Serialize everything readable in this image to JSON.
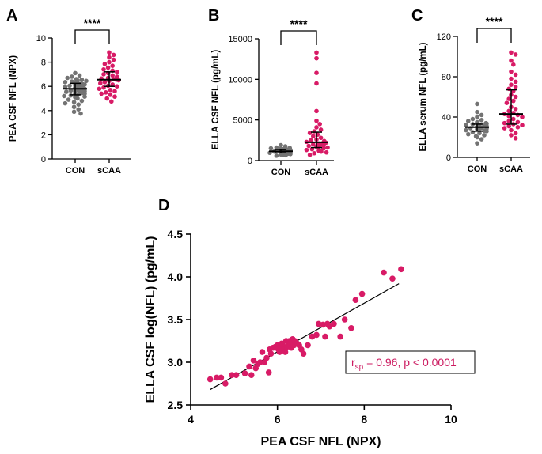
{
  "colors": {
    "con": "#737373",
    "scaa": "#d81b66",
    "stat_text": "#cc1a60",
    "axis": "#000000"
  },
  "chart_data": [
    {
      "panel": "A",
      "type": "scatter",
      "title": "",
      "xlabel": "",
      "ylabel": "PEA CSF NFL (NPX)",
      "categories": [
        "CON",
        "sCAA"
      ],
      "ylim": [
        0,
        10
      ],
      "yticks": [
        0,
        2,
        4,
        6,
        8,
        10
      ],
      "ytick_labels": [
        "0",
        "2",
        "4",
        "6",
        "8",
        "10"
      ],
      "significance": "****",
      "summary": [
        {
          "median": 5.8,
          "q1": 5.3,
          "q3": 6.25
        },
        {
          "median": 6.55,
          "q1": 6.0,
          "q3": 7.2
        }
      ],
      "series": [
        {
          "name": "CON",
          "values": [
            7.1,
            6.9,
            6.8,
            6.7,
            6.6,
            6.55,
            6.5,
            6.45,
            6.4,
            6.35,
            6.3,
            6.25,
            6.2,
            6.2,
            6.15,
            6.1,
            6.05,
            6.0,
            6.0,
            5.95,
            5.9,
            5.9,
            5.85,
            5.8,
            5.8,
            5.75,
            5.7,
            5.7,
            5.65,
            5.6,
            5.6,
            5.55,
            5.5,
            5.45,
            5.4,
            5.35,
            5.3,
            5.25,
            5.2,
            5.15,
            5.1,
            5.0,
            4.9,
            4.8,
            4.7,
            4.6,
            4.5,
            4.3,
            4.1,
            3.9,
            3.75
          ]
        },
        {
          "name": "sCAA",
          "values": [
            8.8,
            8.6,
            8.4,
            8.2,
            8.0,
            7.85,
            7.7,
            7.55,
            7.4,
            7.3,
            7.2,
            7.1,
            7.0,
            6.9,
            6.8,
            6.7,
            6.65,
            6.6,
            6.55,
            6.5,
            6.45,
            6.35,
            6.25,
            6.15,
            6.05,
            6.0,
            5.9,
            5.8,
            5.7,
            5.6,
            5.5,
            5.4,
            5.3,
            5.15,
            5.0,
            4.75
          ]
        }
      ]
    },
    {
      "panel": "B",
      "type": "scatter",
      "title": "",
      "xlabel": "",
      "ylabel": "ELLA CSF NFL (pg/mL)",
      "categories": [
        "CON",
        "sCAA"
      ],
      "ylim": [
        0,
        15000
      ],
      "yticks": [
        0,
        5000,
        10000,
        15000
      ],
      "ytick_labels": [
        "0",
        "5000",
        "10000",
        "15000"
      ],
      "significance": "****",
      "summary": [
        {
          "median": 1150,
          "q1": 950,
          "q3": 1350
        },
        {
          "median": 2250,
          "q1": 1600,
          "q3": 3500
        }
      ],
      "series": [
        {
          "name": "CON",
          "values": [
            1900,
            1750,
            1600,
            1550,
            1500,
            1450,
            1400,
            1380,
            1350,
            1320,
            1300,
            1280,
            1250,
            1230,
            1200,
            1180,
            1150,
            1130,
            1100,
            1080,
            1050,
            1020,
            1000,
            980,
            950,
            930,
            900,
            880,
            850,
            800,
            750,
            700,
            650,
            600
          ]
        },
        {
          "name": "sCAA",
          "values": [
            13300,
            12600,
            10800,
            9500,
            6100,
            4900,
            4500,
            4100,
            3800,
            3600,
            3400,
            3200,
            3000,
            2800,
            2600,
            2500,
            2400,
            2300,
            2250,
            2200,
            2100,
            2000,
            1950,
            1900,
            1800,
            1700,
            1650,
            1600,
            1500,
            1400,
            1300,
            1200,
            1100,
            1000,
            900,
            700
          ]
        }
      ]
    },
    {
      "panel": "C",
      "type": "scatter",
      "title": "",
      "xlabel": "",
      "ylabel": "ELLA serum NFL (pg/mL)",
      "categories": [
        "CON",
        "sCAA"
      ],
      "ylim": [
        0,
        120
      ],
      "yticks": [
        0,
        40,
        80,
        120
      ],
      "ytick_labels": [
        "0",
        "40",
        "80",
        "120"
      ],
      "significance": "****",
      "summary": [
        {
          "median": 30,
          "q1": 26,
          "q3": 33
        },
        {
          "median": 43,
          "q1": 33,
          "q3": 67
        }
      ],
      "series": [
        {
          "name": "CON",
          "values": [
            53,
            45,
            42,
            40,
            38,
            37,
            36,
            35,
            34,
            33.5,
            33,
            32.5,
            32,
            31.5,
            31,
            30.5,
            30,
            29.5,
            29,
            28.5,
            28,
            27.5,
            27,
            26.5,
            26,
            25,
            24,
            23,
            22,
            21,
            20,
            18,
            14
          ]
        },
        {
          "name": "sCAA",
          "values": [
            104,
            102,
            96,
            92,
            85,
            82,
            78,
            75,
            72,
            70,
            68,
            66,
            62,
            60,
            58,
            56,
            54,
            50,
            48,
            46,
            44,
            43,
            42,
            41,
            40,
            38,
            36,
            35,
            34,
            33,
            32,
            31,
            30,
            29,
            27,
            24,
            22,
            19
          ]
        }
      ]
    },
    {
      "panel": "D",
      "type": "scatter",
      "title": "",
      "xlabel": "PEA CSF NFL (NPX)",
      "ylabel": "ELLA CSF log(NFL) (pg/mL)",
      "xlim": [
        4,
        10
      ],
      "ylim": [
        2.5,
        4.5
      ],
      "xticks": [
        4,
        6,
        8,
        10
      ],
      "xtick_labels": [
        "4",
        "6",
        "8",
        "10"
      ],
      "yticks": [
        2.5,
        3.0,
        3.5,
        4.0,
        4.5
      ],
      "ytick_labels": [
        "2.5",
        "3.0",
        "3.5",
        "4.0",
        "4.5"
      ],
      "fit_line": [
        [
          4.45,
          2.68
        ],
        [
          8.8,
          3.92
        ]
      ],
      "annotation": {
        "r_main": "r",
        "r_sub": "sp",
        "rest": " = 0.96, p < 0.0001"
      },
      "points": [
        [
          4.45,
          2.8
        ],
        [
          4.6,
          2.82
        ],
        [
          4.7,
          2.82
        ],
        [
          4.8,
          2.75
        ],
        [
          4.95,
          2.85
        ],
        [
          5.05,
          2.85
        ],
        [
          5.25,
          2.87
        ],
        [
          5.35,
          2.95
        ],
        [
          5.4,
          2.85
        ],
        [
          5.45,
          3.02
        ],
        [
          5.5,
          2.93
        ],
        [
          5.55,
          2.98
        ],
        [
          5.6,
          3.0
        ],
        [
          5.65,
          3.12
        ],
        [
          5.7,
          3.0
        ],
        [
          5.75,
          3.05
        ],
        [
          5.8,
          2.88
        ],
        [
          5.82,
          3.15
        ],
        [
          5.85,
          3.1
        ],
        [
          5.9,
          3.17
        ],
        [
          5.95,
          3.18
        ],
        [
          6.0,
          3.2
        ],
        [
          6.02,
          3.15
        ],
        [
          6.05,
          3.12
        ],
        [
          6.08,
          3.18
        ],
        [
          6.1,
          3.22
        ],
        [
          6.12,
          3.2
        ],
        [
          6.15,
          3.15
        ],
        [
          6.18,
          3.12
        ],
        [
          6.2,
          3.25
        ],
        [
          6.22,
          3.18
        ],
        [
          6.25,
          3.2
        ],
        [
          6.28,
          3.25
        ],
        [
          6.3,
          3.22
        ],
        [
          6.32,
          3.17
        ],
        [
          6.35,
          3.27
        ],
        [
          6.38,
          3.2
        ],
        [
          6.4,
          3.25
        ],
        [
          6.45,
          3.22
        ],
        [
          6.5,
          3.2
        ],
        [
          6.55,
          3.15
        ],
        [
          6.6,
          3.1
        ],
        [
          6.7,
          3.2
        ],
        [
          6.8,
          3.3
        ],
        [
          6.9,
          3.32
        ],
        [
          6.95,
          3.45
        ],
        [
          7.05,
          3.44
        ],
        [
          7.1,
          3.3
        ],
        [
          7.15,
          3.45
        ],
        [
          7.2,
          3.42
        ],
        [
          7.3,
          3.45
        ],
        [
          7.45,
          3.3
        ],
        [
          7.55,
          3.5
        ],
        [
          7.7,
          3.4
        ],
        [
          7.8,
          3.73
        ],
        [
          7.95,
          3.8
        ],
        [
          8.45,
          4.05
        ],
        [
          8.65,
          3.98
        ],
        [
          8.85,
          4.09
        ]
      ]
    }
  ]
}
